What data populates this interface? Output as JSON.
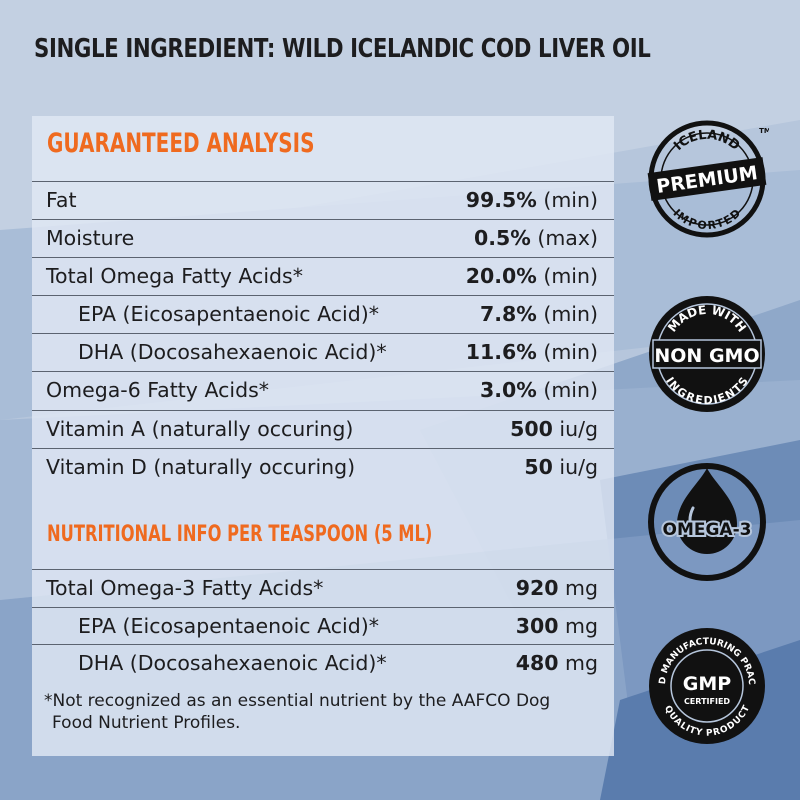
{
  "title": "SINGLE INGREDIENT: WILD ICELANDIC COD LIVER OIL",
  "guaranteed_analysis": {
    "heading": "GUARANTEED ANALYSIS",
    "rows": [
      {
        "label": "Fat",
        "value": "99.5%",
        "unit": "(min)"
      },
      {
        "label": "Moisture",
        "value": "0.5%",
        "unit": "(max)"
      },
      {
        "label": "Total Omega Fatty Acids*",
        "value": "20.0%",
        "unit": "(min)"
      },
      {
        "label": "EPA (Eicosapentaenoic Acid)*",
        "value": "7.8%",
        "unit": "(min)"
      },
      {
        "label": "DHA (Docosahexaenoic Acid)*",
        "value": "11.6%",
        "unit": "(min)"
      },
      {
        "label": "Omega-6 Fatty Acids*",
        "value": "3.0%",
        "unit": "(min)"
      },
      {
        "label": "Vitamin A (naturally occuring)",
        "value": "500",
        "unit": "iu/g"
      },
      {
        "label": "Vitamin D (naturally occuring)",
        "value": "50",
        "unit": "iu/g"
      }
    ]
  },
  "nutritional_info": {
    "heading": "NUTRITIONAL INFO PER TEASPOON (5 ML)",
    "rows": [
      {
        "label": "Total Omega-3 Fatty Acids*",
        "value": "920",
        "unit": "mg"
      },
      {
        "label": "EPA (Eicosapentaenoic Acid)*",
        "value": "300",
        "unit": "mg"
      },
      {
        "label": "DHA (Docosahexaenoic Acid)*",
        "value": "480",
        "unit": "mg"
      }
    ]
  },
  "footnote": {
    "line1": "*Not recognized as an essential nutrient by the AAFCO Dog",
    "line2": "Food Nutrient Profiles."
  },
  "badges": {
    "iceland": {
      "top": "ICELAND",
      "middle": "PREMIUM",
      "bottom": "IMPORTED",
      "tm": "TM"
    },
    "nongmo": {
      "top": "MADE WITH",
      "middle": "NON GMO",
      "bottom": "INGREDIENTS"
    },
    "omega": {
      "middle": "OMEGA-3"
    },
    "gmp": {
      "ring": "GOOD MANUFACTURING PRACTICE",
      "middle": "GMP",
      "sub": "CERTIFIED",
      "bottom": "QUALITY PRODUCT"
    }
  },
  "colors": {
    "accent": "#ef6a1f",
    "text": "#1d1d1f",
    "badge": "#111111"
  }
}
